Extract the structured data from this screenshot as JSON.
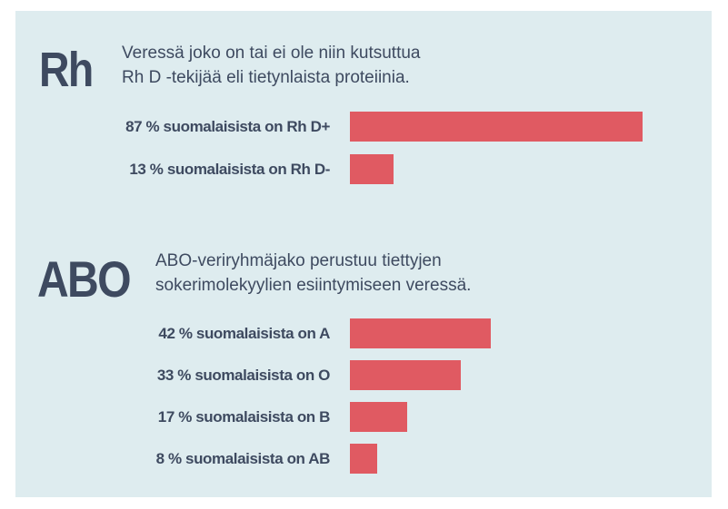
{
  "chart_data": [
    {
      "type": "bar",
      "orientation": "horizontal",
      "heading": "Rh",
      "description_lines": [
        "Veressä joko on tai ei ole niin kutsuttua",
        "Rh D -tekijää eli tietynlaista proteiinia."
      ],
      "categories": [
        "87 % suomalaisista on Rh D+",
        "13 % suomalaisista on Rh D-"
      ],
      "values": [
        87,
        13
      ],
      "xlim": [
        0,
        100
      ],
      "grid": false
    },
    {
      "type": "bar",
      "orientation": "horizontal",
      "heading": "ABO",
      "description_lines": [
        "ABO-veriryhmäjako perustuu tiettyjen",
        "sokerimolekyylien esiintymiseen veressä."
      ],
      "categories": [
        "42 % suomalaisista on A",
        "33 % suomalaisista on O",
        "17 % suomalaisista on B",
        "8 % suomalaisista on AB"
      ],
      "values": [
        42,
        33,
        17,
        8
      ],
      "xlim": [
        0,
        100
      ],
      "grid": false
    }
  ],
  "colors": {
    "background": "#deecef",
    "bar": "#e05a62",
    "text": "#3e4a60"
  }
}
